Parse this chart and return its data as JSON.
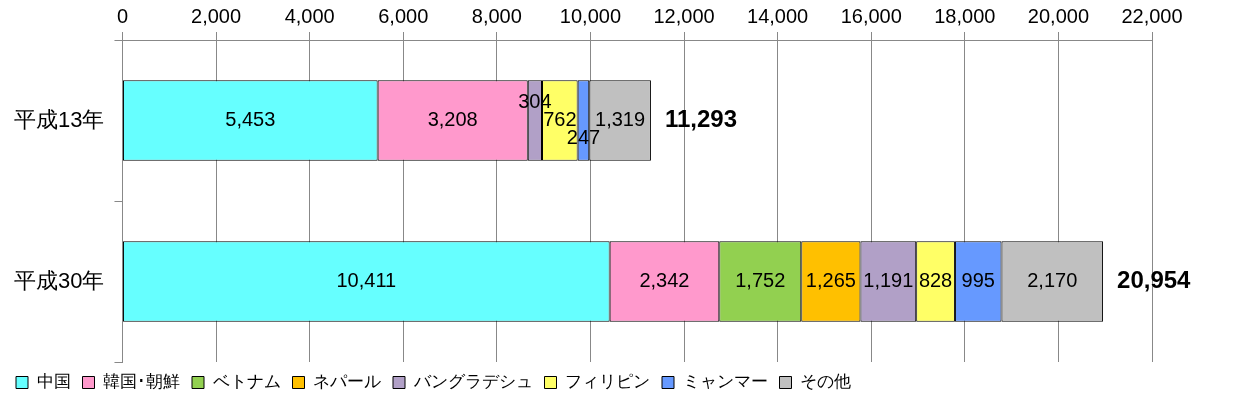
{
  "chart_data": {
    "type": "bar",
    "orientation": "horizontal",
    "stacked": true,
    "categories": [
      "平成13年",
      "平成30年"
    ],
    "series": [
      {
        "name": "中国",
        "color": "#66ffff",
        "values": [
          5453,
          10411
        ],
        "value_labels": [
          "5,453",
          "10,411"
        ]
      },
      {
        "name": "韓国･朝鮮",
        "color": "#ff99cc",
        "values": [
          3208,
          2342
        ],
        "value_labels": [
          "3,208",
          "2,342"
        ]
      },
      {
        "name": "ベトナム",
        "color": "#92d050",
        "values": [
          null,
          1752
        ],
        "value_labels": [
          null,
          "1,752"
        ]
      },
      {
        "name": "ネパール",
        "color": "#ffc000",
        "values": [
          null,
          1265
        ],
        "value_labels": [
          null,
          "1,265"
        ]
      },
      {
        "name": "バングラデシュ",
        "color": "#b1a0c7",
        "values": [
          304,
          1191
        ],
        "value_labels": [
          "304",
          "1,191"
        ]
      },
      {
        "name": "フィリピン",
        "color": "#ffff66",
        "values": [
          762,
          828
        ],
        "value_labels": [
          "762",
          "828"
        ]
      },
      {
        "name": "ミャンマー",
        "color": "#6699ff",
        "values": [
          247,
          995
        ],
        "value_labels": [
          "247",
          "995"
        ]
      },
      {
        "name": "その他",
        "color": "#c0c0c0",
        "values": [
          1319,
          2170
        ],
        "value_labels": [
          "1,319",
          "2,170"
        ]
      }
    ],
    "totals": [
      "11,293",
      "20,954"
    ],
    "xlim": [
      0,
      22000
    ],
    "xticks": [
      0,
      {
        "value": 2000,
        "label": "2,000"
      },
      {
        "value": 4000,
        "label": "4,000"
      },
      {
        "value": 6000,
        "label": "6,000"
      },
      {
        "value": 8000,
        "label": "8,000"
      },
      {
        "value": 10000,
        "label": "10,000"
      },
      {
        "value": 12000,
        "label": "12,000"
      },
      {
        "value": 14000,
        "label": "14,000"
      },
      {
        "value": 16000,
        "label": "16,000"
      },
      {
        "value": 18000,
        "label": "18,000"
      },
      {
        "value": 20000,
        "label": "20,000"
      },
      {
        "value": 22000,
        "label": "22,000"
      }
    ],
    "grid": "x",
    "legend": "bottom"
  }
}
